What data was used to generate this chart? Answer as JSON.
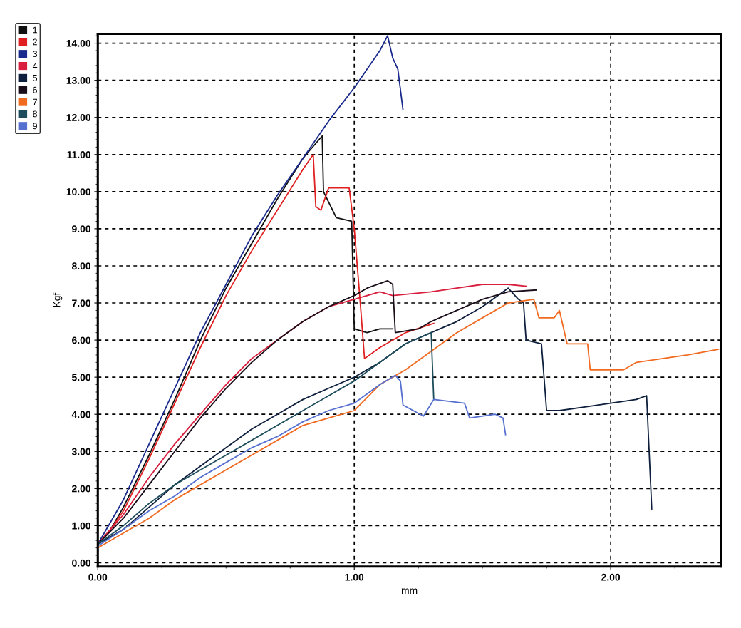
{
  "chart_data": {
    "type": "line",
    "xlabel": "mm",
    "ylabel": "Kgf",
    "xlim": [
      0,
      2.43
    ],
    "ylim": [
      -0.1,
      14.25
    ],
    "xticks": [
      {
        "value": 0,
        "label": "0.00"
      },
      {
        "value": 1,
        "label": "1.00"
      },
      {
        "value": 2,
        "label": "2.00"
      }
    ],
    "yticks": [
      {
        "value": 0,
        "label": "0.00"
      },
      {
        "value": 1,
        "label": "1.00"
      },
      {
        "value": 2,
        "label": "2.00"
      },
      {
        "value": 3,
        "label": "3.00"
      },
      {
        "value": 4,
        "label": "4.00"
      },
      {
        "value": 5,
        "label": "5.00"
      },
      {
        "value": 6,
        "label": "6.00"
      },
      {
        "value": 7,
        "label": "7.00"
      },
      {
        "value": 8,
        "label": "8.00"
      },
      {
        "value": 9,
        "label": "9.00"
      },
      {
        "value": 10,
        "label": "10.00"
      },
      {
        "value": 11,
        "label": "11.00"
      },
      {
        "value": 12,
        "label": "12.00"
      },
      {
        "value": 13,
        "label": "13.00"
      },
      {
        "value": 14,
        "label": "14.00"
      }
    ],
    "grid": true,
    "legend": "top left",
    "marker": "none",
    "line_style": "solid",
    "series": [
      {
        "name": "1",
        "color": "#111111",
        "x": [
          0,
          0.05,
          0.1,
          0.2,
          0.3,
          0.4,
          0.5,
          0.6,
          0.7,
          0.8,
          0.875,
          0.88,
          0.93,
          0.99,
          1.0,
          1.05,
          1.1,
          1.15
        ],
        "values": [
          0.5,
          0.9,
          1.5,
          2.9,
          4.4,
          6.0,
          7.4,
          8.6,
          9.8,
          10.9,
          11.5,
          10.0,
          9.3,
          9.2,
          6.3,
          6.2,
          6.3,
          6.3
        ]
      },
      {
        "name": "2",
        "color": "#e02020",
        "x": [
          0,
          0.05,
          0.1,
          0.2,
          0.3,
          0.4,
          0.5,
          0.6,
          0.7,
          0.8,
          0.84,
          0.85,
          0.87,
          0.9,
          0.98,
          1.0,
          1.02,
          1.04,
          1.1,
          1.2,
          1.31
        ],
        "values": [
          0.5,
          0.9,
          1.4,
          2.8,
          4.3,
          5.8,
          7.2,
          8.4,
          9.5,
          10.6,
          11.0,
          9.6,
          9.5,
          10.1,
          10.1,
          9.0,
          7.3,
          5.5,
          5.8,
          6.2,
          6.45
        ]
      },
      {
        "name": "3",
        "color": "#1a2a8c",
        "x": [
          0,
          0.05,
          0.1,
          0.2,
          0.3,
          0.4,
          0.5,
          0.6,
          0.7,
          0.8,
          0.9,
          1.0,
          1.05,
          1.1,
          1.13,
          1.15,
          1.17,
          1.19
        ],
        "values": [
          0.5,
          1.1,
          1.7,
          3.2,
          4.7,
          6.2,
          7.5,
          8.8,
          9.9,
          10.9,
          11.9,
          12.8,
          13.3,
          13.8,
          14.2,
          13.6,
          13.3,
          12.2
        ]
      },
      {
        "name": "4",
        "color": "#d81e3c",
        "x": [
          0,
          0.1,
          0.2,
          0.3,
          0.4,
          0.5,
          0.6,
          0.7,
          0.8,
          0.9,
          1.0,
          1.1,
          1.15,
          1.3,
          1.4,
          1.5,
          1.6,
          1.67
        ],
        "values": [
          0.5,
          1.3,
          2.3,
          3.2,
          4.0,
          4.8,
          5.5,
          6.0,
          6.5,
          6.9,
          7.1,
          7.3,
          7.2,
          7.3,
          7.4,
          7.5,
          7.5,
          7.45
        ]
      },
      {
        "name": "5",
        "color": "#0d1f3c",
        "x": [
          0,
          0.1,
          0.2,
          0.3,
          0.4,
          0.5,
          0.6,
          0.7,
          0.8,
          0.9,
          1.0,
          1.1,
          1.2,
          1.3,
          1.4,
          1.5,
          1.6,
          1.64,
          1.66,
          1.67,
          1.73,
          1.75,
          1.8,
          1.9,
          2.0,
          2.1,
          2.14,
          2.16
        ],
        "values": [
          0.5,
          0.9,
          1.5,
          2.1,
          2.6,
          3.1,
          3.6,
          4.0,
          4.4,
          4.7,
          5.0,
          5.4,
          5.9,
          6.2,
          6.5,
          6.9,
          7.4,
          7.1,
          7.0,
          6.0,
          5.9,
          4.1,
          4.1,
          4.2,
          4.3,
          4.4,
          4.5,
          1.45
        ]
      },
      {
        "name": "6",
        "color": "#1a0d1a",
        "x": [
          0,
          0.1,
          0.2,
          0.3,
          0.4,
          0.5,
          0.6,
          0.7,
          0.8,
          0.9,
          1.0,
          1.05,
          1.13,
          1.15,
          1.16,
          1.25,
          1.3,
          1.4,
          1.5,
          1.6,
          1.71
        ],
        "values": [
          0.5,
          1.2,
          2.1,
          3.0,
          3.9,
          4.7,
          5.4,
          6.0,
          6.5,
          6.9,
          7.2,
          7.4,
          7.6,
          7.5,
          6.2,
          6.3,
          6.5,
          6.8,
          7.1,
          7.3,
          7.35
        ]
      },
      {
        "name": "7",
        "color": "#f06a20",
        "x": [
          0,
          0.1,
          0.2,
          0.3,
          0.4,
          0.5,
          0.6,
          0.7,
          0.8,
          0.9,
          1.0,
          1.1,
          1.2,
          1.3,
          1.4,
          1.5,
          1.6,
          1.7,
          1.72,
          1.78,
          1.8,
          1.83,
          1.91,
          1.92,
          2.05,
          2.1,
          2.2,
          2.3,
          2.42
        ],
        "values": [
          0.4,
          0.8,
          1.2,
          1.7,
          2.1,
          2.5,
          2.9,
          3.3,
          3.7,
          3.9,
          4.1,
          4.8,
          5.2,
          5.7,
          6.2,
          6.6,
          7.0,
          7.1,
          6.6,
          6.6,
          6.8,
          5.9,
          5.9,
          5.2,
          5.2,
          5.4,
          5.5,
          5.6,
          5.75
        ]
      },
      {
        "name": "8",
        "color": "#1d4d5c",
        "x": [
          0,
          0.1,
          0.2,
          0.3,
          0.4,
          0.5,
          0.6,
          0.7,
          0.8,
          0.9,
          1.0,
          1.1,
          1.2,
          1.3,
          1.31
        ],
        "values": [
          0.5,
          1.0,
          1.6,
          2.1,
          2.5,
          2.9,
          3.3,
          3.7,
          4.1,
          4.5,
          4.9,
          5.4,
          5.9,
          6.2,
          4.4
        ]
      },
      {
        "name": "9",
        "color": "#5670d0",
        "x": [
          0,
          0.1,
          0.2,
          0.3,
          0.4,
          0.5,
          0.6,
          0.7,
          0.8,
          0.9,
          1.0,
          1.1,
          1.16,
          1.18,
          1.19,
          1.27,
          1.31,
          1.43,
          1.45,
          1.55,
          1.58,
          1.59
        ],
        "values": [
          0.45,
          0.9,
          1.4,
          1.8,
          2.3,
          2.7,
          3.1,
          3.4,
          3.8,
          4.1,
          4.3,
          4.8,
          5.05,
          4.9,
          4.25,
          3.95,
          4.4,
          4.3,
          3.9,
          4.0,
          3.9,
          3.45
        ]
      }
    ]
  }
}
